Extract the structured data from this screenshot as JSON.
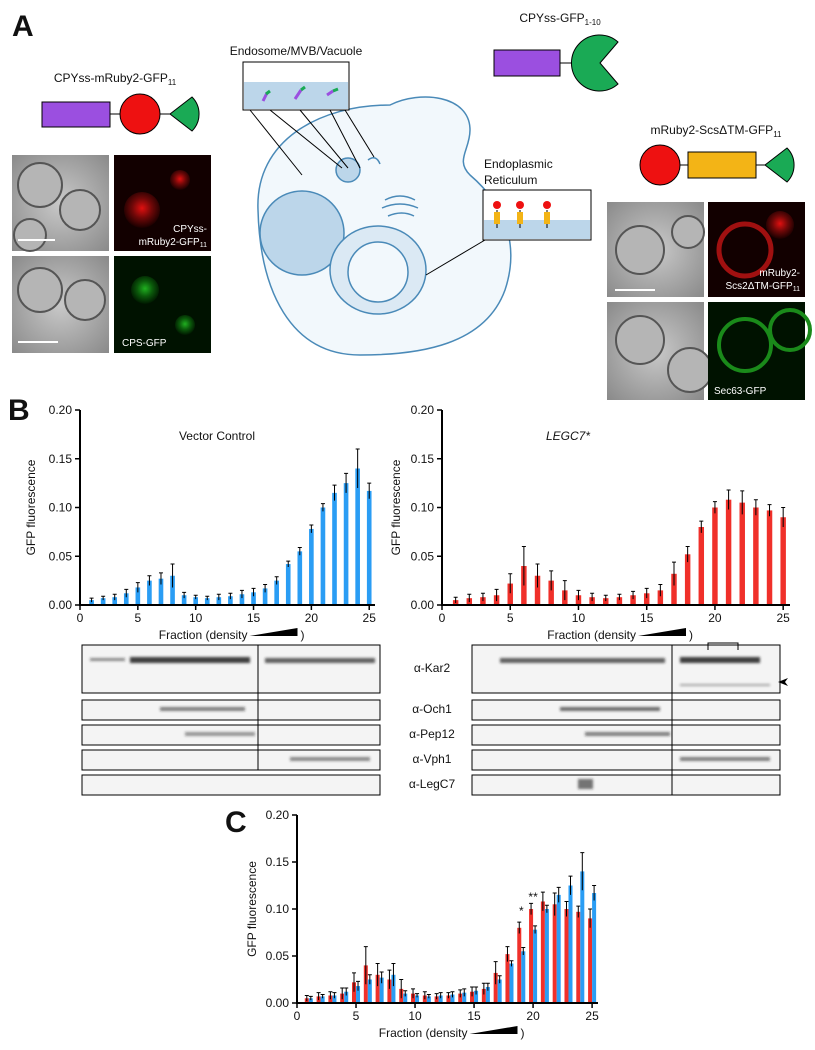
{
  "panels": {
    "a": "A",
    "b": "B",
    "c": "C"
  },
  "panel_a": {
    "construct1": "CPYss-mRuby2-GFP",
    "construct1_sub": "11",
    "construct2": "CPYss-GFP",
    "construct2_sub": "1-10",
    "construct3": "mRuby2-ScsΔTM-GFP",
    "construct3_sub": "11",
    "caption1": [
      "CPYss-",
      "mRuby2-GFP"
    ],
    "caption1_sub": "11",
    "caption2": "CPS-GFP",
    "caption3": [
      "mRuby2-",
      "Scs2ΔTM-GFP"
    ],
    "caption3_sub": "11",
    "caption4": "Sec63-GFP",
    "endosome": "Endosome/MVB/Vacuole",
    "er": [
      "Endoplasmic",
      "Reticulum"
    ]
  },
  "blots": {
    "labels": [
      "α-Kar2",
      "α-Och1",
      "α-Pep12",
      "α-Vph1",
      "α-LegC7"
    ]
  },
  "chart_data": [
    {
      "type": "bar",
      "title": "Vector Control",
      "y_label": "GFP fluorescence",
      "x_label": "Fraction (density",
      "x_label_end": ")",
      "x": [
        1,
        2,
        3,
        4,
        5,
        6,
        7,
        8,
        9,
        10,
        11,
        12,
        13,
        14,
        15,
        16,
        17,
        18,
        19,
        20,
        21,
        22,
        23,
        24,
        25
      ],
      "values": [
        0.005,
        0.007,
        0.008,
        0.012,
        0.018,
        0.025,
        0.027,
        0.03,
        0.01,
        0.008,
        0.007,
        0.008,
        0.009,
        0.011,
        0.013,
        0.017,
        0.025,
        0.042,
        0.055,
        0.078,
        0.1,
        0.115,
        0.125,
        0.14,
        0.117
      ],
      "errors": [
        0.002,
        0.002,
        0.003,
        0.004,
        0.005,
        0.005,
        0.006,
        0.012,
        0.003,
        0.002,
        0.002,
        0.003,
        0.003,
        0.004,
        0.004,
        0.004,
        0.004,
        0.003,
        0.004,
        0.004,
        0.004,
        0.008,
        0.01,
        0.02,
        0.008
      ],
      "color": "#2a9df4",
      "xlim": [
        0,
        25.5
      ],
      "xticks": [
        0,
        5,
        10,
        15,
        20,
        25
      ],
      "ylim": [
        0,
        0.2
      ],
      "yticks": [
        {
          "value": 0,
          "label": "0.00"
        },
        {
          "value": 0.05,
          "label": "0.05"
        },
        {
          "value": 0.1,
          "label": "0.10"
        },
        {
          "value": 0.15,
          "label": "0.15"
        },
        {
          "value": 0.2,
          "label": "0.20"
        }
      ]
    },
    {
      "type": "bar",
      "title": "LEGC7*",
      "y_label": "GFP fluorescence",
      "x_label": "Fraction (density",
      "x_label_end": ")",
      "x": [
        1,
        2,
        3,
        4,
        5,
        6,
        7,
        8,
        9,
        10,
        11,
        12,
        13,
        14,
        15,
        16,
        17,
        18,
        19,
        20,
        21,
        22,
        23,
        24,
        25
      ],
      "values": [
        0.005,
        0.007,
        0.008,
        0.01,
        0.022,
        0.04,
        0.03,
        0.025,
        0.015,
        0.01,
        0.008,
        0.007,
        0.008,
        0.01,
        0.012,
        0.015,
        0.032,
        0.052,
        0.08,
        0.1,
        0.108,
        0.105,
        0.1,
        0.097,
        0.09
      ],
      "errors": [
        0.003,
        0.004,
        0.004,
        0.006,
        0.01,
        0.02,
        0.012,
        0.01,
        0.01,
        0.005,
        0.004,
        0.003,
        0.003,
        0.004,
        0.005,
        0.006,
        0.012,
        0.008,
        0.006,
        0.006,
        0.01,
        0.012,
        0.008,
        0.006,
        0.01
      ],
      "color": "#f0302a",
      "xlim": [
        0,
        25.5
      ],
      "xticks": [
        0,
        5,
        10,
        15,
        20,
        25
      ],
      "ylim": [
        0,
        0.2
      ],
      "yticks": [
        {
          "value": 0,
          "label": "0.00"
        },
        {
          "value": 0.05,
          "label": "0.05"
        },
        {
          "value": 0.1,
          "label": "0.10"
        },
        {
          "value": 0.15,
          "label": "0.15"
        },
        {
          "value": 0.2,
          "label": "0.20"
        }
      ]
    },
    {
      "type": "grouped_bar",
      "y_label": "GFP fluorescence",
      "x_label": "Fraction (density",
      "x_label_end": ")",
      "x": [
        1,
        2,
        3,
        4,
        5,
        6,
        7,
        8,
        9,
        10,
        11,
        12,
        13,
        14,
        15,
        16,
        17,
        18,
        19,
        20,
        21,
        22,
        23,
        24,
        25
      ],
      "series": [
        {
          "color": "#f0302a",
          "values": [
            0.005,
            0.007,
            0.008,
            0.01,
            0.022,
            0.04,
            0.03,
            0.025,
            0.015,
            0.01,
            0.008,
            0.007,
            0.008,
            0.01,
            0.012,
            0.015,
            0.032,
            0.052,
            0.08,
            0.1,
            0.108,
            0.105,
            0.1,
            0.097,
            0.09
          ],
          "errors": [
            0.003,
            0.004,
            0.004,
            0.006,
            0.01,
            0.02,
            0.012,
            0.01,
            0.01,
            0.005,
            0.004,
            0.003,
            0.003,
            0.004,
            0.005,
            0.006,
            0.012,
            0.008,
            0.006,
            0.006,
            0.01,
            0.012,
            0.008,
            0.006,
            0.01
          ]
        },
        {
          "color": "#2a9df4",
          "values": [
            0.005,
            0.007,
            0.008,
            0.012,
            0.018,
            0.025,
            0.027,
            0.03,
            0.01,
            0.008,
            0.007,
            0.008,
            0.009,
            0.011,
            0.013,
            0.017,
            0.025,
            0.042,
            0.055,
            0.078,
            0.1,
            0.115,
            0.125,
            0.14,
            0.117
          ],
          "errors": [
            0.002,
            0.002,
            0.003,
            0.004,
            0.005,
            0.005,
            0.006,
            0.012,
            0.003,
            0.002,
            0.002,
            0.003,
            0.003,
            0.004,
            0.004,
            0.004,
            0.004,
            0.003,
            0.004,
            0.004,
            0.004,
            0.008,
            0.01,
            0.02,
            0.008
          ]
        }
      ],
      "annotations": [
        {
          "text": "*",
          "x": 19
        },
        {
          "text": "**",
          "x": 20
        }
      ],
      "xlim": [
        0,
        25.5
      ],
      "xticks": [
        0,
        5,
        10,
        15,
        20,
        25
      ],
      "ylim": [
        0,
        0.2
      ],
      "yticks": [
        {
          "value": 0,
          "label": "0.00"
        },
        {
          "value": 0.05,
          "label": "0.05"
        },
        {
          "value": 0.1,
          "label": "0.10"
        },
        {
          "value": 0.15,
          "label": "0.15"
        },
        {
          "value": 0.2,
          "label": "0.20"
        }
      ]
    }
  ]
}
